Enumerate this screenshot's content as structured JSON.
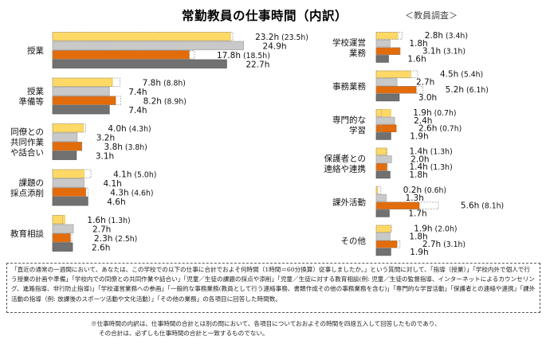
{
  "title": "常勤教員の仕事時間（内訳）",
  "source": "＜教員調査＞",
  "colors": {
    "series1": "#FFD966",
    "series2": "#C9C9C9",
    "series3": "#E36C0A",
    "series4": "#717171"
  },
  "chart_data": [
    {
      "type": "bar",
      "orientation": "horizontal",
      "panel": "left",
      "categories": [
        [
          "授業"
        ],
        [
          "授業",
          "準備等"
        ],
        [
          "同僚との",
          "共同作業",
          "や話合い"
        ],
        [
          "課題の",
          "採点添削"
        ],
        [
          "教育相談"
        ]
      ],
      "series": [
        {
          "values": [
            23.2,
            7.8,
            4.0,
            4.1,
            1.6
          ],
          "dashed_values": [
            23.5,
            8.8,
            4.3,
            5.0,
            1.3
          ]
        },
        {
          "values": [
            24.9,
            7.4,
            3.2,
            4.1,
            2.7
          ]
        },
        {
          "values": [
            17.8,
            8.2,
            3.8,
            4.3,
            2.3
          ],
          "dashed_values": [
            18.5,
            8.9,
            3.8,
            4.6,
            2.5
          ]
        },
        {
          "values": [
            22.7,
            7.4,
            3.1,
            4.6,
            2.6
          ]
        }
      ],
      "unit": "h"
    },
    {
      "type": "bar",
      "orientation": "horizontal",
      "panel": "right",
      "categories": [
        [
          "学校運営",
          "業務"
        ],
        [
          "事務業務"
        ],
        [
          "専門的な",
          "学習"
        ],
        [
          "保護者との",
          "連絡や連携"
        ],
        [
          "課外活動"
        ],
        [
          "その他"
        ]
      ],
      "series": [
        {
          "values": [
            2.8,
            4.5,
            1.9,
            1.4,
            0.2,
            1.9
          ],
          "dashed_values": [
            3.4,
            5.4,
            0.7,
            1.3,
            0.6,
            2.0
          ]
        },
        {
          "values": [
            1.8,
            2.7,
            2.4,
            2.0,
            1.3,
            1.8
          ]
        },
        {
          "values": [
            3.1,
            5.2,
            2.6,
            1.4,
            5.6,
            2.7
          ],
          "dashed_values": [
            3.1,
            6.1,
            0.7,
            1.3,
            8.1,
            3.1
          ]
        },
        {
          "values": [
            1.6,
            3.0,
            1.9,
            1.8,
            1.7,
            1.9
          ]
        }
      ],
      "unit": "h"
    }
  ],
  "note": "「直近の通常の一週間において、あなたは、この学校での以下の仕事に合計でおよそ何時間（1時間＝60分換算）従事しましたか。」という質問に対して、「指導（授業）」「学校内外で個人で行う授業の計画や準備」「学校内での同僚との共同作業や話合い」「児童／生徒の課題の採点や添削」「児童／生徒に対する教育相談(例: 児童／生徒の監督指導、インターネットによるカウンセリング、進路指導、非行防止指導)」「学校運営業務への参画」「一般的な事務業務(教員として行う連絡事務、書類作成その他の事務業務を含む)」「専門的な学習活動」「保護者との連絡や連携」「課外活動の指導（例: 放課後のスポーツ活動や文化活動）」「その他の業務」の各項目に回答した時間数。",
  "footnote": [
    "※仕事時間の内訳は、仕事時間の合計とは別の問において、各項目についておおよその時間を四捨五入して回答したものであり、",
    "その合計は、必ずしも仕事時間の合計と一致するものでない。"
  ]
}
